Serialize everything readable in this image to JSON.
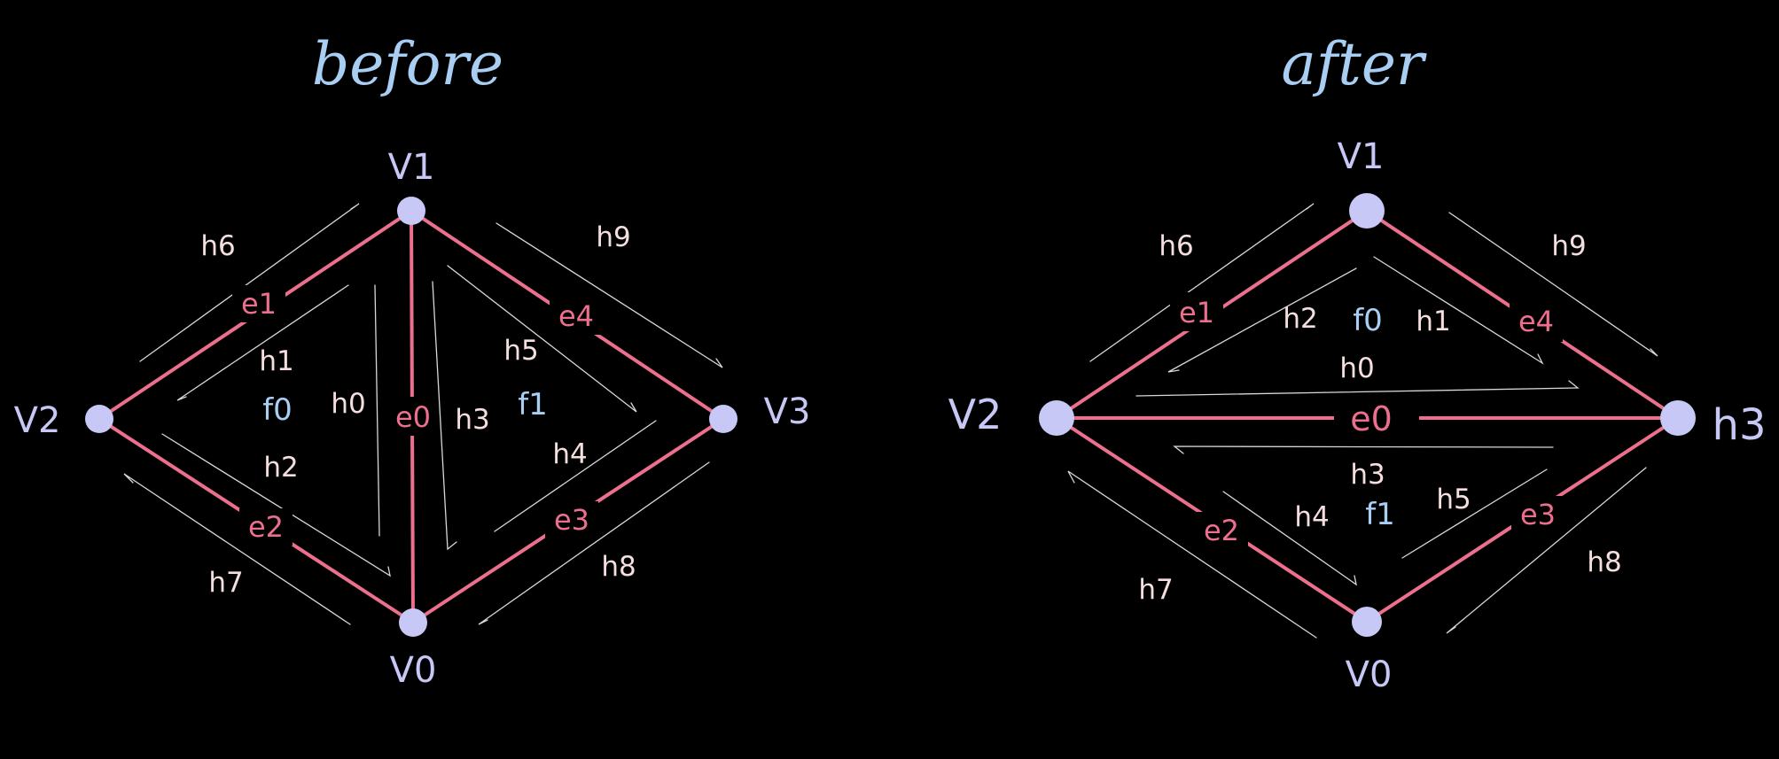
{
  "colors": {
    "background": "#000000",
    "title": "#a8cff3",
    "vertex": "#c8c8f7",
    "vertex_label": "#c8c8f7",
    "edge": "#ec6f8d",
    "edge_label": "#ec6f8d",
    "halfedge_stroke": "#d8d8d8",
    "halfedge_label": "#f4dede",
    "face_label": "#a8cff3"
  },
  "diagrams": [
    {
      "title": "before",
      "vertices": [
        "V1",
        "V2",
        "V3",
        "V0"
      ],
      "edges": [
        "e1",
        "e4",
        "e0",
        "e2",
        "e3"
      ],
      "faces": [
        "f0",
        "f1"
      ],
      "halfedges": [
        "h6",
        "h9",
        "h1",
        "h0",
        "h5",
        "h3",
        "h2",
        "h4",
        "h7",
        "h8"
      ]
    },
    {
      "title": "after",
      "vertices": [
        "V1",
        "V2",
        "h3",
        "V0"
      ],
      "edges": [
        "e1",
        "e4",
        "e0",
        "e2",
        "e3"
      ],
      "faces": [
        "f0",
        "f1"
      ],
      "halfedges": [
        "h6",
        "h9",
        "h2",
        "h1",
        "h0",
        "h3",
        "h4",
        "h5",
        "h7",
        "h8"
      ]
    }
  ]
}
